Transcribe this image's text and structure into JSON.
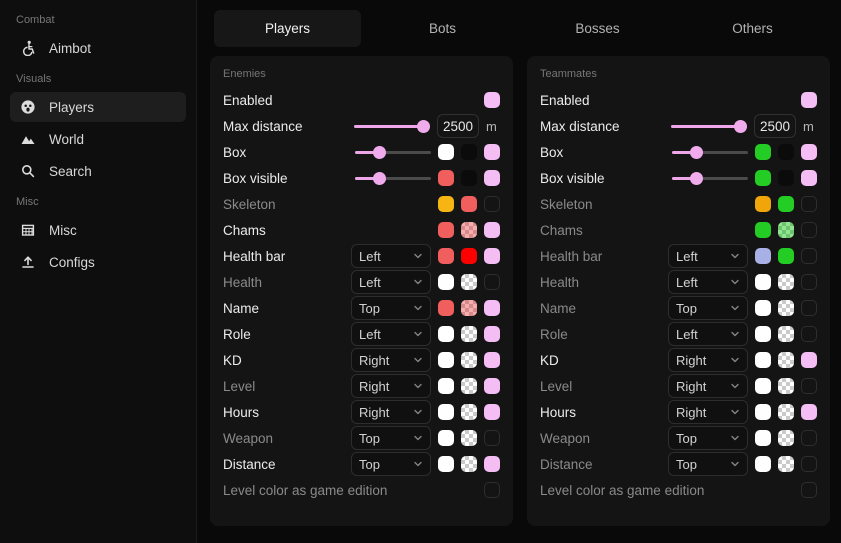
{
  "colors": {
    "accent_pink_checkbox": "#f4bef5",
    "slider_pink": "#f0abec",
    "salmon_red": "#f15e5e",
    "pure_red": "#ff0000",
    "gold": "#f7b514",
    "orange_gold": "#f0a50a",
    "green": "#24cd24",
    "periwinkle": "#a9b0e6",
    "white": "#ffffff",
    "black_swatch": "#0b0b0b"
  },
  "sidebar": {
    "sections": [
      {
        "label": "Combat",
        "items": [
          {
            "label": "Aimbot",
            "icon": "wheelchair-icon",
            "active": false
          }
        ]
      },
      {
        "label": "Visuals",
        "items": [
          {
            "label": "Players",
            "icon": "player-face-icon",
            "active": true
          },
          {
            "label": "World",
            "icon": "mountains-icon",
            "active": false
          },
          {
            "label": "Search",
            "icon": "search-icon",
            "active": false
          }
        ]
      },
      {
        "label": "Misc",
        "items": [
          {
            "label": "Misc",
            "icon": "building-icon",
            "active": false
          },
          {
            "label": "Configs",
            "icon": "upload-icon",
            "active": false
          }
        ]
      }
    ]
  },
  "tabs": [
    {
      "label": "Players",
      "active": true
    },
    {
      "label": "Bots",
      "active": false
    },
    {
      "label": "Bosses",
      "active": false
    },
    {
      "label": "Others",
      "active": false
    }
  ],
  "panels": [
    {
      "title": "Enemies",
      "rows": [
        {
          "label": "Enabled",
          "dim": false,
          "controls": [
            {
              "t": "check",
              "checked": true
            }
          ]
        },
        {
          "label": "Max distance",
          "dim": false,
          "controls": [
            {
              "t": "slider",
              "pos": 1
            },
            {
              "t": "input",
              "value": "2500"
            },
            {
              "t": "unit",
              "text": "m"
            }
          ]
        },
        {
          "label": "Box",
          "dim": false,
          "controls": [
            {
              "t": "slider",
              "pos": 0.28
            },
            {
              "t": "swatch",
              "color": "#ffffff"
            },
            {
              "t": "swatch",
              "color": "#0b0b0b"
            },
            {
              "t": "check",
              "checked": true
            }
          ]
        },
        {
          "label": "Box visible",
          "dim": false,
          "controls": [
            {
              "t": "slider",
              "pos": 0.28
            },
            {
              "t": "swatch",
              "color": "#f15e5e"
            },
            {
              "t": "swatch",
              "color": "#0b0b0b"
            },
            {
              "t": "check",
              "checked": true
            }
          ]
        },
        {
          "label": "Skeleton",
          "dim": true,
          "controls": [
            {
              "t": "swatch",
              "color": "#f7b514"
            },
            {
              "t": "swatch",
              "color": "#f15e5e"
            },
            {
              "t": "check",
              "checked": false
            }
          ]
        },
        {
          "label": "Chams",
          "dim": false,
          "controls": [
            {
              "t": "swatch",
              "color": "#f15e5e"
            },
            {
              "t": "swatch",
              "color": "#f15e5e",
              "alpha": 0.5
            },
            {
              "t": "check",
              "checked": true
            }
          ]
        },
        {
          "label": "Health bar",
          "dim": false,
          "controls": [
            {
              "t": "select",
              "value": "Left"
            },
            {
              "t": "swatch",
              "color": "#f15e5e"
            },
            {
              "t": "swatch",
              "color": "#ff0000"
            },
            {
              "t": "check",
              "checked": true
            }
          ]
        },
        {
          "label": "Health",
          "dim": true,
          "controls": [
            {
              "t": "select",
              "value": "Left"
            },
            {
              "t": "swatch",
              "color": "#ffffff"
            },
            {
              "t": "swatch",
              "color": "#ffffff",
              "alpha": 0.25
            },
            {
              "t": "check",
              "checked": false
            }
          ]
        },
        {
          "label": "Name",
          "dim": false,
          "controls": [
            {
              "t": "select",
              "value": "Top"
            },
            {
              "t": "swatch",
              "color": "#f15e5e"
            },
            {
              "t": "swatch",
              "color": "#f15e5e",
              "alpha": 0.5
            },
            {
              "t": "check",
              "checked": true
            }
          ]
        },
        {
          "label": "Role",
          "dim": false,
          "controls": [
            {
              "t": "select",
              "value": "Left"
            },
            {
              "t": "swatch",
              "color": "#ffffff"
            },
            {
              "t": "swatch",
              "color": "#ffffff",
              "alpha": 0.25
            },
            {
              "t": "check",
              "checked": true
            }
          ]
        },
        {
          "label": "KD",
          "dim": false,
          "controls": [
            {
              "t": "select",
              "value": "Right"
            },
            {
              "t": "swatch",
              "color": "#ffffff"
            },
            {
              "t": "swatch",
              "color": "#ffffff",
              "alpha": 0.25
            },
            {
              "t": "check",
              "checked": true
            }
          ]
        },
        {
          "label": "Level",
          "dim": true,
          "controls": [
            {
              "t": "select",
              "value": "Right"
            },
            {
              "t": "swatch",
              "color": "#ffffff"
            },
            {
              "t": "swatch",
              "color": "#ffffff",
              "alpha": 0.25
            },
            {
              "t": "check",
              "checked": true
            }
          ]
        },
        {
          "label": "Hours",
          "dim": false,
          "controls": [
            {
              "t": "select",
              "value": "Right"
            },
            {
              "t": "swatch",
              "color": "#ffffff"
            },
            {
              "t": "swatch",
              "color": "#ffffff",
              "alpha": 0.25
            },
            {
              "t": "check",
              "checked": true
            }
          ]
        },
        {
          "label": "Weapon",
          "dim": true,
          "controls": [
            {
              "t": "select",
              "value": "Top"
            },
            {
              "t": "swatch",
              "color": "#ffffff"
            },
            {
              "t": "swatch",
              "color": "#ffffff",
              "alpha": 0.25
            },
            {
              "t": "check",
              "checked": false
            }
          ]
        },
        {
          "label": "Distance",
          "dim": false,
          "controls": [
            {
              "t": "select",
              "value": "Top"
            },
            {
              "t": "swatch",
              "color": "#ffffff"
            },
            {
              "t": "swatch",
              "color": "#ffffff",
              "alpha": 0.25
            },
            {
              "t": "check",
              "checked": true
            }
          ]
        },
        {
          "label": "Level color as game edition",
          "dim": true,
          "controls": [
            {
              "t": "check",
              "checked": false
            }
          ]
        }
      ]
    },
    {
      "title": "Teammates",
      "rows": [
        {
          "label": "Enabled",
          "dim": false,
          "controls": [
            {
              "t": "check",
              "checked": true
            }
          ]
        },
        {
          "label": "Max distance",
          "dim": false,
          "controls": [
            {
              "t": "slider",
              "pos": 1
            },
            {
              "t": "input",
              "value": "2500"
            },
            {
              "t": "unit",
              "text": "m"
            }
          ]
        },
        {
          "label": "Box",
          "dim": false,
          "controls": [
            {
              "t": "slider",
              "pos": 0.28
            },
            {
              "t": "swatch",
              "color": "#24cd24"
            },
            {
              "t": "swatch",
              "color": "#0b0b0b"
            },
            {
              "t": "check",
              "checked": true
            }
          ]
        },
        {
          "label": "Box visible",
          "dim": false,
          "controls": [
            {
              "t": "slider",
              "pos": 0.28
            },
            {
              "t": "swatch",
              "color": "#24cd24"
            },
            {
              "t": "swatch",
              "color": "#0b0b0b"
            },
            {
              "t": "check",
              "checked": true
            }
          ]
        },
        {
          "label": "Skeleton",
          "dim": true,
          "controls": [
            {
              "t": "swatch",
              "color": "#f0a50a"
            },
            {
              "t": "swatch",
              "color": "#24cd24"
            },
            {
              "t": "check",
              "checked": false
            }
          ]
        },
        {
          "label": "Chams",
          "dim": true,
          "controls": [
            {
              "t": "swatch",
              "color": "#24cd24"
            },
            {
              "t": "swatch",
              "color": "#24cd24",
              "alpha": 0.5
            },
            {
              "t": "check",
              "checked": false
            }
          ]
        },
        {
          "label": "Health bar",
          "dim": true,
          "controls": [
            {
              "t": "select",
              "value": "Left"
            },
            {
              "t": "swatch",
              "color": "#a9b0e6"
            },
            {
              "t": "swatch",
              "color": "#24cd24"
            },
            {
              "t": "check",
              "checked": false
            }
          ]
        },
        {
          "label": "Health",
          "dim": true,
          "controls": [
            {
              "t": "select",
              "value": "Left"
            },
            {
              "t": "swatch",
              "color": "#ffffff"
            },
            {
              "t": "swatch",
              "color": "#ffffff",
              "alpha": 0.25
            },
            {
              "t": "check",
              "checked": false
            }
          ]
        },
        {
          "label": "Name",
          "dim": true,
          "controls": [
            {
              "t": "select",
              "value": "Top"
            },
            {
              "t": "swatch",
              "color": "#ffffff"
            },
            {
              "t": "swatch",
              "color": "#ffffff",
              "alpha": 0.25
            },
            {
              "t": "check",
              "checked": false
            }
          ]
        },
        {
          "label": "Role",
          "dim": true,
          "controls": [
            {
              "t": "select",
              "value": "Left"
            },
            {
              "t": "swatch",
              "color": "#ffffff"
            },
            {
              "t": "swatch",
              "color": "#ffffff",
              "alpha": 0.25
            },
            {
              "t": "check",
              "checked": false
            }
          ]
        },
        {
          "label": "KD",
          "dim": false,
          "controls": [
            {
              "t": "select",
              "value": "Right"
            },
            {
              "t": "swatch",
              "color": "#ffffff"
            },
            {
              "t": "swatch",
              "color": "#ffffff",
              "alpha": 0.25
            },
            {
              "t": "check",
              "checked": true
            }
          ]
        },
        {
          "label": "Level",
          "dim": true,
          "controls": [
            {
              "t": "select",
              "value": "Right"
            },
            {
              "t": "swatch",
              "color": "#ffffff"
            },
            {
              "t": "swatch",
              "color": "#ffffff",
              "alpha": 0.25
            },
            {
              "t": "check",
              "checked": false
            }
          ]
        },
        {
          "label": "Hours",
          "dim": false,
          "controls": [
            {
              "t": "select",
              "value": "Right"
            },
            {
              "t": "swatch",
              "color": "#ffffff"
            },
            {
              "t": "swatch",
              "color": "#ffffff",
              "alpha": 0.25
            },
            {
              "t": "check",
              "checked": true
            }
          ]
        },
        {
          "label": "Weapon",
          "dim": true,
          "controls": [
            {
              "t": "select",
              "value": "Top"
            },
            {
              "t": "swatch",
              "color": "#ffffff"
            },
            {
              "t": "swatch",
              "color": "#ffffff",
              "alpha": 0.25
            },
            {
              "t": "check",
              "checked": false
            }
          ]
        },
        {
          "label": "Distance",
          "dim": true,
          "controls": [
            {
              "t": "select",
              "value": "Top"
            },
            {
              "t": "swatch",
              "color": "#ffffff"
            },
            {
              "t": "swatch",
              "color": "#ffffff",
              "alpha": 0.25
            },
            {
              "t": "check",
              "checked": false
            }
          ]
        },
        {
          "label": "Level color as game edition",
          "dim": true,
          "controls": [
            {
              "t": "check",
              "checked": false
            }
          ]
        }
      ]
    }
  ]
}
